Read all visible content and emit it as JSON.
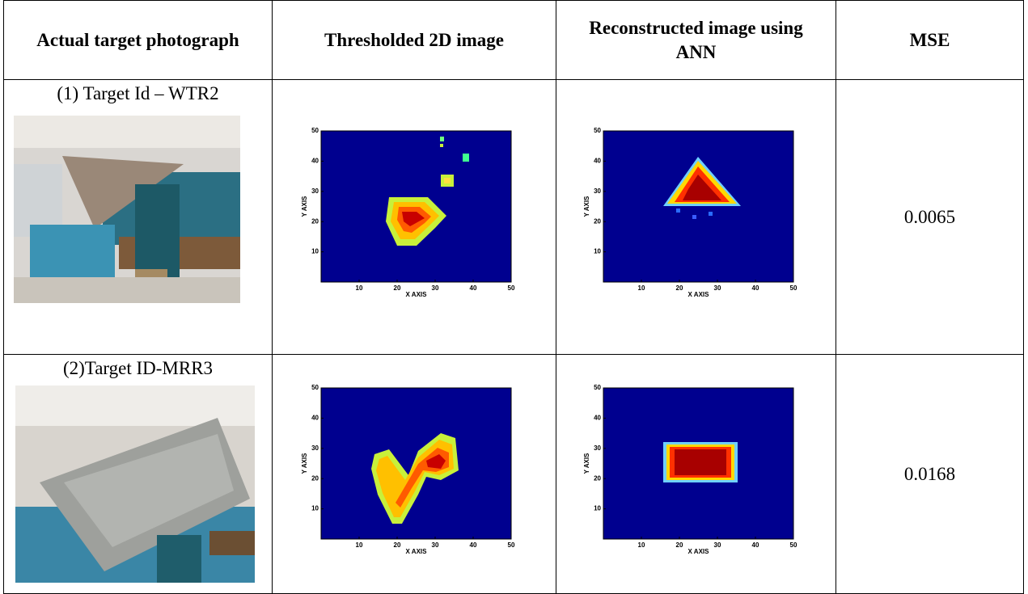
{
  "table": {
    "headers": [
      "Actual target photograph",
      "Thresholded 2D image",
      "Reconstructed image using ANN",
      "MSE"
    ],
    "rows": [
      {
        "caption": "(1) Target Id – WTR2",
        "mse": 0.0065
      },
      {
        "caption": "(2)Target ID-MRR3",
        "mse": 0.0168
      }
    ]
  },
  "plot_axes": {
    "x_label": "X AXIS",
    "y_label": "Y AXIS",
    "x_lim": [
      0,
      50
    ],
    "y_lim": [
      0,
      50
    ],
    "x_ticks": [
      10,
      20,
      30,
      40,
      50
    ],
    "y_ticks": [
      10,
      20,
      30,
      40,
      50
    ]
  }
}
